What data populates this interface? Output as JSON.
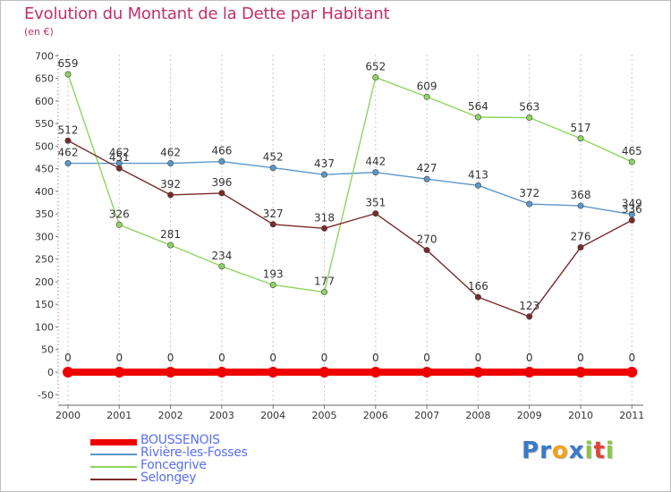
{
  "title": "Evolution du Montant de la Dette par Habitant",
  "subtitle": "(en €)",
  "logo": {
    "text": "Proxiti",
    "letters": [
      {
        "ch": "P",
        "color": "#3a7ac8"
      },
      {
        "ch": "r",
        "color": "#3a7ac8"
      },
      {
        "ch": "o",
        "color": "#f2a21a"
      },
      {
        "ch": "x",
        "color": "#3a7ac8"
      },
      {
        "ch": "i",
        "color": "#8cc63e"
      },
      {
        "ch": "t",
        "color": "#e0453a"
      },
      {
        "ch": "i",
        "color": "#8cc63e"
      }
    ]
  },
  "chart_data": {
    "type": "line",
    "title": "Evolution du Montant de la Dette par Habitant",
    "subtitle": "(en €)",
    "x": [
      "2000",
      "2001",
      "2002",
      "2003",
      "2004",
      "2005",
      "2006",
      "2007",
      "2008",
      "2009",
      "2010",
      "2011"
    ],
    "yticks": [
      -50,
      0,
      50,
      100,
      150,
      200,
      250,
      300,
      350,
      400,
      450,
      500,
      550,
      600,
      650,
      700
    ],
    "ylim": [
      -50,
      700
    ],
    "grid": "vertical-dashed",
    "legend_position": "bottom-left",
    "series": [
      {
        "name": "BOUSSENOIS",
        "color": "#ee0000",
        "values": [
          0,
          0,
          0,
          0,
          0,
          0,
          0,
          0,
          0,
          0,
          0,
          0
        ]
      },
      {
        "name": "Rivière-les-Fosses",
        "color": "#5b97c9",
        "values": [
          462,
          462,
          462,
          466,
          452,
          437,
          442,
          427,
          413,
          372,
          368,
          349
        ]
      },
      {
        "name": "Foncegrive",
        "color": "#8cd660",
        "values": [
          659,
          326,
          281,
          234,
          193,
          177,
          652,
          609,
          564,
          563,
          517,
          465
        ]
      },
      {
        "name": "Selongey",
        "color": "#7a2a2a",
        "values": [
          512,
          451,
          392,
          396,
          327,
          318,
          351,
          270,
          166,
          123,
          276,
          336
        ]
      }
    ]
  }
}
